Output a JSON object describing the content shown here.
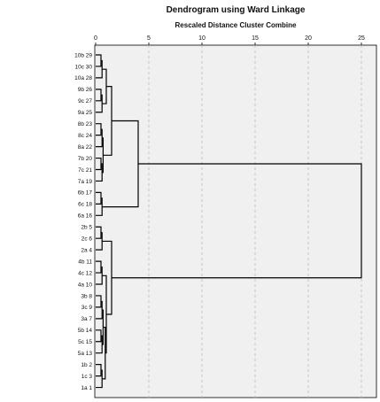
{
  "chart_data": {
    "type": "dendrogram",
    "title": "Dendrogram using Ward Linkage",
    "subtitle": "Rescaled Distance Cluster Combine",
    "xlim": [
      0,
      25
    ],
    "xticks": [
      0,
      5,
      10,
      15,
      20,
      25
    ],
    "grid": true,
    "leaves": [
      "10b 29",
      "10c 30",
      "10a 28",
      "9b 26",
      "9c 27",
      "9a 25",
      "8b 23",
      "8c 24",
      "8a 22",
      "7b 20",
      "7c 21",
      "7a 19",
      "6b 17",
      "6c 18",
      "6a 16",
      "2b 5",
      "2c 6",
      "2a 4",
      "4b 11",
      "4c 12",
      "4a 10",
      "3b 8",
      "3c 9",
      "3a 7",
      "5b 14",
      "5c 15",
      "5a 13",
      "1b 2",
      "1c 3",
      "1a 1"
    ],
    "merges": [
      {
        "children": [
          "10b 29",
          "10c 30"
        ],
        "distance": 0.5
      },
      {
        "children": [
          "9b 26",
          "9c 27"
        ],
        "distance": 0.5
      },
      {
        "children": [
          "8b 23",
          "8c 24"
        ],
        "distance": 0.5
      },
      {
        "children": [
          "7b 20",
          "7c 21"
        ],
        "distance": 0.5
      },
      {
        "children": [
          "6b 17",
          "6c 18"
        ],
        "distance": 0.5
      },
      {
        "children": [
          "2b 5",
          "2c 6"
        ],
        "distance": 0.5
      },
      {
        "children": [
          "4b 11",
          "4c 12"
        ],
        "distance": 0.5
      },
      {
        "children": [
          "3b 8",
          "3c 9"
        ],
        "distance": 0.5
      },
      {
        "children": [
          "5b 14",
          "5c 15"
        ],
        "distance": 0.5
      },
      {
        "children": [
          "1b 2",
          "1c 3"
        ],
        "distance": 0.5
      },
      {
        "children": [
          "10b 29,10c 30",
          "10a 28"
        ],
        "distance": 0.6
      },
      {
        "children": [
          "9b 26,9c 27",
          "9a 25"
        ],
        "distance": 0.6
      },
      {
        "children": [
          "8b 23,8c 24",
          "8a 22"
        ],
        "distance": 0.6
      },
      {
        "children": [
          "7b 20,7c 21",
          "7a 19"
        ],
        "distance": 0.6
      },
      {
        "children": [
          "6b 17,6c 18",
          "6a 16"
        ],
        "distance": 0.6
      },
      {
        "children": [
          "2b 5,2c 6",
          "2a 4"
        ],
        "distance": 0.6
      },
      {
        "children": [
          "4b 11,4c 12",
          "4a 10"
        ],
        "distance": 0.6
      },
      {
        "children": [
          "3b 8,3c 9",
          "3a 7"
        ],
        "distance": 0.6
      },
      {
        "children": [
          "5b 14,5c 15",
          "5a 13"
        ],
        "distance": 0.6
      },
      {
        "children": [
          "1b 2,1c 3",
          "1a 1"
        ],
        "distance": 0.6
      },
      {
        "children": [
          "8 group",
          "7 group"
        ],
        "distance": 0.7
      },
      {
        "children": [
          "3 group",
          "5 group"
        ],
        "distance": 0.7
      },
      {
        "children": [
          "3-5 group",
          "1 group"
        ],
        "distance": 0.9
      },
      {
        "children": [
          "10 group",
          "9 group"
        ],
        "distance": 1.0
      },
      {
        "children": [
          "4 group",
          "3-5-1 group"
        ],
        "distance": 1.0
      },
      {
        "children": [
          "10-9 group",
          "8-7 group"
        ],
        "distance": 1.5
      },
      {
        "children": [
          "2 group",
          "4-3-5-1 group"
        ],
        "distance": 1.5
      },
      {
        "children": [
          "10-9-8-7 group",
          "6 group"
        ],
        "distance": 4.0
      },
      {
        "children": [
          "10-9-8-7-6 group",
          "2-4-3-5-1 group"
        ],
        "distance": 25.0
      }
    ]
  }
}
